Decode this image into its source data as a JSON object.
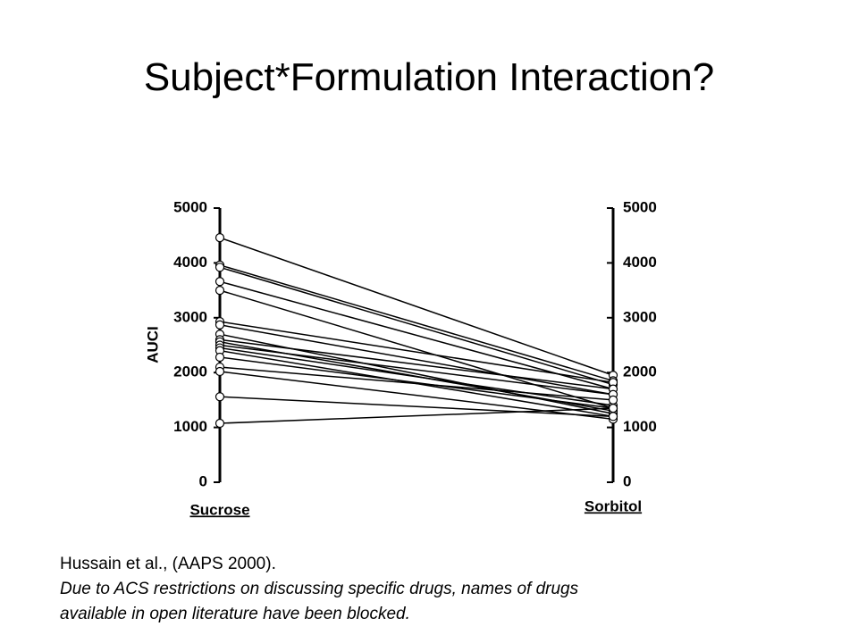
{
  "title": "Subject*Formulation Interaction?",
  "chart_data": {
    "type": "line",
    "y_label": "AUCI",
    "categories": [
      "Sucrose",
      "Sorbitol"
    ],
    "color": "#000000",
    "series": [
      {
        "values": [
          4460,
          1950
        ]
      },
      {
        "values": [
          3960,
          1850
        ]
      },
      {
        "values": [
          3920,
          1780
        ]
      },
      {
        "values": [
          3660,
          1700
        ]
      },
      {
        "values": [
          3500,
          1350
        ]
      },
      {
        "values": [
          2930,
          1820
        ]
      },
      {
        "values": [
          2870,
          1600
        ]
      },
      {
        "values": [
          2700,
          1250
        ]
      },
      {
        "values": [
          2600,
          1700
        ]
      },
      {
        "values": [
          2560,
          1300
        ]
      },
      {
        "values": [
          2500,
          1600
        ]
      },
      {
        "values": [
          2450,
          1400
        ]
      },
      {
        "values": [
          2400,
          1200
        ]
      },
      {
        "values": [
          2280,
          1350
        ]
      },
      {
        "values": [
          2100,
          1500
        ]
      },
      {
        "values": [
          2020,
          1150
        ]
      },
      {
        "values": [
          1560,
          1200
        ]
      },
      {
        "values": [
          1075,
          1350
        ]
      }
    ],
    "ylim": [
      0,
      5000
    ],
    "yticks": [
      0,
      1000,
      2000,
      3000,
      4000,
      5000
    ],
    "y2lim": [
      0,
      5000
    ],
    "y2ticks": [
      0,
      1000,
      2000,
      3000,
      4000,
      5000
    ]
  },
  "notes": [
    "Hussain et al., (AAPS 2000).",
    "Due to ACS restrictions on discussing specific drugs, names of drugs",
    "available in open literature have been blocked."
  ]
}
